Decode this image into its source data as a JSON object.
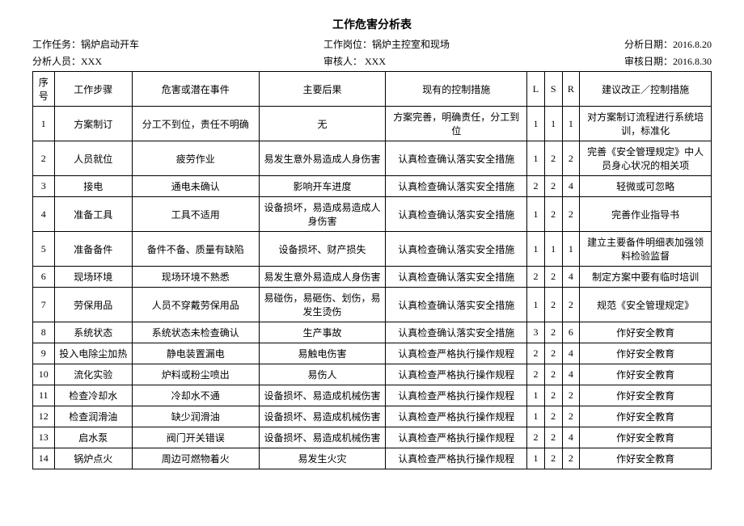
{
  "title": "工作危害分析表",
  "meta": {
    "task_label": "工作任务：",
    "task_value": "锅炉启动开车",
    "post_label": "工作岗位：",
    "post_value": "锅炉主控室和现场",
    "analysis_date_label": "分析日期：",
    "analysis_date_value": "2016.8.20",
    "analysts_label": "分析人员：",
    "analysts_value": "XXX",
    "reviewer_label": "审核人：",
    "reviewer_value": " XXX",
    "review_date_label": "审核日期：",
    "review_date_value": "2016.8.30"
  },
  "columns": {
    "seq": "序号",
    "step": "工作步骤",
    "hazard": "危害或潜在事件",
    "consequence": "主要后果",
    "control": "现有的控制措施",
    "l": "L",
    "s": "S",
    "r": "R",
    "suggest": "建议改正／控制措施"
  },
  "rows": [
    {
      "seq": "1",
      "step": "方案制订",
      "hazard": "分工不到位，责任不明确",
      "consequence": "无",
      "control": "方案完善，明确责任，分工到位",
      "l": "1",
      "s": "1",
      "r": "1",
      "suggest": "对方案制订流程进行系统培训，标准化"
    },
    {
      "seq": "2",
      "step": "人员就位",
      "hazard": "疲劳作业",
      "consequence": "易发生意外易造成人身伤害",
      "control": "认真检查确认落实安全措施",
      "l": "1",
      "s": "2",
      "r": "2",
      "suggest": "完善《安全管理规定》中人员身心状况的相关项"
    },
    {
      "seq": "3",
      "step": "接电",
      "hazard": "通电未确认",
      "consequence": "影响开车进度",
      "control": "认真检查确认落实安全措施",
      "l": "2",
      "s": "2",
      "r": "4",
      "suggest": "轻微或可忽略"
    },
    {
      "seq": "4",
      "step": "准备工具",
      "hazard": "工具不适用",
      "consequence": "设备损坏，易造成易造成人身伤害",
      "control": "认真检查确认落实安全措施",
      "l": "1",
      "s": "2",
      "r": "2",
      "suggest": "完善作业指导书"
    },
    {
      "seq": "5",
      "step": "准备备件",
      "hazard": "备件不备、质量有缺陷",
      "consequence": "设备损坏、财产损失",
      "control": "认真检查确认落实安全措施",
      "l": "1",
      "s": "1",
      "r": "1",
      "suggest": "建立主要备件明细表加强领料检验监督"
    },
    {
      "seq": "6",
      "step": "现场环境",
      "hazard": "现场环境不熟悉",
      "consequence": "易发生意外易造成人身伤害",
      "control": "认真检查确认落实安全措施",
      "l": "2",
      "s": "2",
      "r": "4",
      "suggest": "制定方案中要有临时培训"
    },
    {
      "seq": "7",
      "step": "劳保用品",
      "hazard": "人员不穿戴劳保用品",
      "consequence": "易碰伤，易砸伤、划伤，易发生烫伤",
      "control": "认真检查确认落实安全措施",
      "l": "1",
      "s": "2",
      "r": "2",
      "suggest": "规范《安全管理规定》"
    },
    {
      "seq": "8",
      "step": "系统状态",
      "hazard": "系统状态未检查确认",
      "consequence": "生产事故",
      "control": "认真检查确认落实安全措施",
      "l": "3",
      "s": "2",
      "r": "6",
      "suggest": "作好安全教育"
    },
    {
      "seq": "9",
      "step": "投入电除尘加热",
      "hazard": "静电装置漏电",
      "consequence": "易触电伤害",
      "control": "认真检查严格执行操作规程",
      "l": "2",
      "s": "2",
      "r": "4",
      "suggest": "作好安全教育"
    },
    {
      "seq": "10",
      "step": "流化实验",
      "hazard": "炉料或粉尘喷出",
      "consequence": "易伤人",
      "control": "认真检查严格执行操作规程",
      "l": "2",
      "s": "2",
      "r": "4",
      "suggest": "作好安全教育"
    },
    {
      "seq": "11",
      "step": "检查冷却水",
      "hazard": "冷却水不通",
      "consequence": "设备损坏、易造成机械伤害",
      "control": "认真检查严格执行操作规程",
      "l": "1",
      "s": "2",
      "r": "2",
      "suggest": "作好安全教育"
    },
    {
      "seq": "12",
      "step": "检查润滑油",
      "hazard": "缺少润滑油",
      "consequence": "设备损坏、易造成机械伤害",
      "control": "认真检查严格执行操作规程",
      "l": "1",
      "s": "2",
      "r": "2",
      "suggest": "作好安全教育"
    },
    {
      "seq": "13",
      "step": "启水泵",
      "hazard": "阀门开关错误",
      "consequence": "设备损坏、易造成机械伤害",
      "control": "认真检查严格执行操作规程",
      "l": "2",
      "s": "2",
      "r": "4",
      "suggest": "作好安全教育"
    },
    {
      "seq": "14",
      "step": "锅炉点火",
      "hazard": "周边可燃物着火",
      "consequence": "易发生火灾",
      "control": "认真检查严格执行操作规程",
      "l": "1",
      "s": "2",
      "r": "2",
      "suggest": "作好安全教育"
    }
  ]
}
